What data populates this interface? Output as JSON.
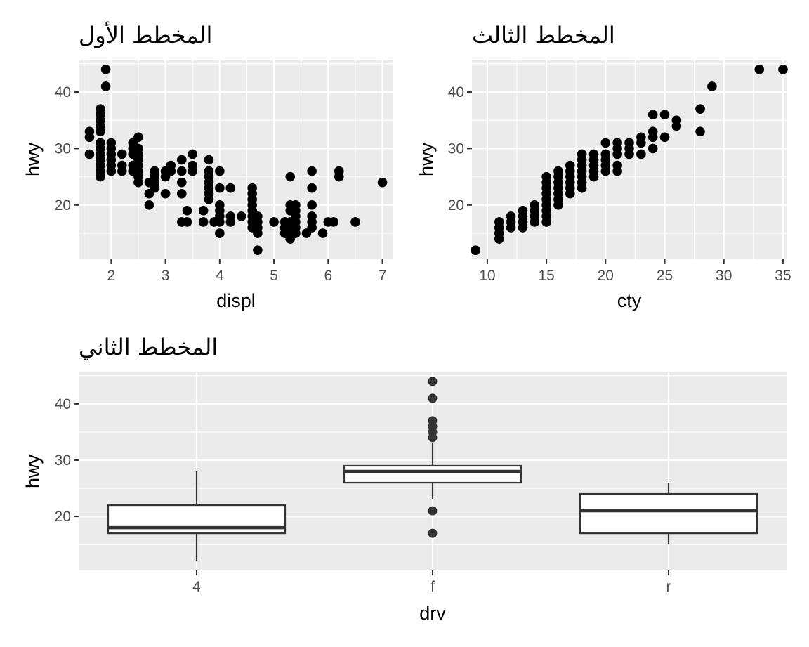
{
  "chart_data": [
    {
      "id": "p1",
      "type": "scatter",
      "title": "المخطط الأول",
      "xlabel": "displ",
      "ylabel": "hwy",
      "xlim": [
        1.4,
        7.2
      ],
      "ylim": [
        10.4,
        45.6
      ],
      "xticks": [
        2,
        3,
        4,
        5,
        6,
        7
      ],
      "yticks": [
        20,
        30,
        40
      ],
      "grid": true,
      "points": [
        [
          1.6,
          33
        ],
        [
          1.6,
          32
        ],
        [
          1.6,
          29
        ],
        [
          1.8,
          25
        ],
        [
          1.8,
          26
        ],
        [
          1.8,
          27
        ],
        [
          1.8,
          28
        ],
        [
          1.8,
          29
        ],
        [
          1.8,
          30
        ],
        [
          1.8,
          31
        ],
        [
          1.8,
          33
        ],
        [
          1.8,
          34
        ],
        [
          1.8,
          35
        ],
        [
          1.8,
          36
        ],
        [
          1.8,
          37
        ],
        [
          1.9,
          41
        ],
        [
          1.9,
          44
        ],
        [
          2.0,
          26
        ],
        [
          2.0,
          27
        ],
        [
          2.0,
          28
        ],
        [
          2.0,
          29
        ],
        [
          2.0,
          30
        ],
        [
          2.0,
          31
        ],
        [
          2.2,
          26
        ],
        [
          2.2,
          27
        ],
        [
          2.2,
          29
        ],
        [
          2.4,
          26
        ],
        [
          2.4,
          27
        ],
        [
          2.4,
          29
        ],
        [
          2.4,
          30
        ],
        [
          2.4,
          31
        ],
        [
          2.5,
          24
        ],
        [
          2.5,
          25
        ],
        [
          2.5,
          26
        ],
        [
          2.5,
          27
        ],
        [
          2.5,
          28
        ],
        [
          2.5,
          29
        ],
        [
          2.5,
          30
        ],
        [
          2.5,
          32
        ],
        [
          2.7,
          20
        ],
        [
          2.7,
          22
        ],
        [
          2.7,
          24
        ],
        [
          2.8,
          23
        ],
        [
          2.8,
          24
        ],
        [
          2.8,
          25
        ],
        [
          2.8,
          26
        ],
        [
          3.0,
          22
        ],
        [
          3.0,
          25
        ],
        [
          3.0,
          26
        ],
        [
          3.1,
          26
        ],
        [
          3.1,
          27
        ],
        [
          3.3,
          17
        ],
        [
          3.3,
          22
        ],
        [
          3.3,
          24
        ],
        [
          3.3,
          26
        ],
        [
          3.3,
          28
        ],
        [
          3.4,
          17
        ],
        [
          3.4,
          19
        ],
        [
          3.5,
          26
        ],
        [
          3.5,
          27
        ],
        [
          3.5,
          29
        ],
        [
          3.7,
          17
        ],
        [
          3.7,
          19
        ],
        [
          3.8,
          21
        ],
        [
          3.8,
          22
        ],
        [
          3.8,
          23
        ],
        [
          3.8,
          24
        ],
        [
          3.8,
          25
        ],
        [
          3.8,
          26
        ],
        [
          3.8,
          28
        ],
        [
          3.9,
          17
        ],
        [
          4.0,
          15
        ],
        [
          4.0,
          17
        ],
        [
          4.0,
          18
        ],
        [
          4.0,
          19
        ],
        [
          4.0,
          20
        ],
        [
          4.0,
          23
        ],
        [
          4.0,
          26
        ],
        [
          4.2,
          17
        ],
        [
          4.2,
          18
        ],
        [
          4.2,
          23
        ],
        [
          4.4,
          18
        ],
        [
          4.6,
          16
        ],
        [
          4.6,
          17
        ],
        [
          4.6,
          18
        ],
        [
          4.6,
          19
        ],
        [
          4.6,
          20
        ],
        [
          4.6,
          21
        ],
        [
          4.6,
          22
        ],
        [
          4.6,
          23
        ],
        [
          4.7,
          12
        ],
        [
          4.7,
          15
        ],
        [
          4.7,
          16
        ],
        [
          4.7,
          17
        ],
        [
          4.7,
          18
        ],
        [
          5.0,
          17
        ],
        [
          5.2,
          15
        ],
        [
          5.2,
          16
        ],
        [
          5.2,
          17
        ],
        [
          5.3,
          14
        ],
        [
          5.3,
          15
        ],
        [
          5.3,
          16
        ],
        [
          5.3,
          17
        ],
        [
          5.3,
          19
        ],
        [
          5.3,
          20
        ],
        [
          5.3,
          25
        ],
        [
          5.4,
          15
        ],
        [
          5.4,
          16
        ],
        [
          5.4,
          17
        ],
        [
          5.4,
          18
        ],
        [
          5.4,
          19
        ],
        [
          5.4,
          20
        ],
        [
          5.6,
          15
        ],
        [
          5.7,
          16
        ],
        [
          5.7,
          17
        ],
        [
          5.7,
          18
        ],
        [
          5.7,
          20
        ],
        [
          5.7,
          23
        ],
        [
          5.7,
          26
        ],
        [
          5.9,
          15
        ],
        [
          6.0,
          17
        ],
        [
          6.1,
          17
        ],
        [
          6.2,
          25
        ],
        [
          6.2,
          26
        ],
        [
          6.5,
          17
        ],
        [
          7.0,
          24
        ]
      ]
    },
    {
      "id": "p3",
      "type": "scatter",
      "title": "المخطط الثالث",
      "xlabel": "cty",
      "ylabel": "hwy",
      "xlim": [
        8.7,
        35.3
      ],
      "ylim": [
        10.4,
        45.6
      ],
      "xticks": [
        10,
        15,
        20,
        25,
        30,
        35
      ],
      "yticks": [
        20,
        30,
        40
      ],
      "grid": true,
      "points": [
        [
          9,
          12
        ],
        [
          11,
          14
        ],
        [
          11,
          15
        ],
        [
          11,
          16
        ],
        [
          11,
          17
        ],
        [
          12,
          16
        ],
        [
          12,
          17
        ],
        [
          12,
          18
        ],
        [
          13,
          16
        ],
        [
          13,
          17
        ],
        [
          13,
          18
        ],
        [
          13,
          19
        ],
        [
          14,
          17
        ],
        [
          14,
          18
        ],
        [
          14,
          19
        ],
        [
          14,
          20
        ],
        [
          15,
          17
        ],
        [
          15,
          18
        ],
        [
          15,
          19
        ],
        [
          15,
          20
        ],
        [
          15,
          21
        ],
        [
          15,
          22
        ],
        [
          15,
          23
        ],
        [
          15,
          24
        ],
        [
          15,
          25
        ],
        [
          16,
          20
        ],
        [
          16,
          21
        ],
        [
          16,
          22
        ],
        [
          16,
          23
        ],
        [
          16,
          24
        ],
        [
          16,
          25
        ],
        [
          16,
          26
        ],
        [
          17,
          22
        ],
        [
          17,
          23
        ],
        [
          17,
          24
        ],
        [
          17,
          25
        ],
        [
          17,
          26
        ],
        [
          17,
          27
        ],
        [
          18,
          23
        ],
        [
          18,
          24
        ],
        [
          18,
          25
        ],
        [
          18,
          26
        ],
        [
          18,
          27
        ],
        [
          18,
          28
        ],
        [
          18,
          29
        ],
        [
          19,
          25
        ],
        [
          19,
          26
        ],
        [
          19,
          27
        ],
        [
          19,
          28
        ],
        [
          19,
          29
        ],
        [
          20,
          26
        ],
        [
          20,
          27
        ],
        [
          20,
          28
        ],
        [
          20,
          29
        ],
        [
          20,
          31
        ],
        [
          21,
          26
        ],
        [
          21,
          27
        ],
        [
          21,
          29
        ],
        [
          21,
          30
        ],
        [
          21,
          31
        ],
        [
          22,
          29
        ],
        [
          22,
          30
        ],
        [
          22,
          31
        ],
        [
          23,
          29
        ],
        [
          23,
          31
        ],
        [
          23,
          32
        ],
        [
          24,
          30
        ],
        [
          24,
          32
        ],
        [
          24,
          33
        ],
        [
          24,
          36
        ],
        [
          25,
          32
        ],
        [
          25,
          36
        ],
        [
          26,
          34
        ],
        [
          26,
          35
        ],
        [
          28,
          33
        ],
        [
          28,
          37
        ],
        [
          29,
          41
        ],
        [
          33,
          44
        ],
        [
          35,
          44
        ]
      ]
    },
    {
      "id": "p2",
      "type": "box",
      "title": "المخطط الثاني",
      "xlabel": "drv",
      "ylabel": "hwy",
      "ylim": [
        10.4,
        45.6
      ],
      "yticks": [
        20,
        30,
        40
      ],
      "grid": true,
      "categories": [
        "4",
        "f",
        "r"
      ],
      "boxes": [
        {
          "category": "4",
          "min": 12,
          "q1": 17,
          "median": 18,
          "q3": 22,
          "max": 28,
          "outliers": []
        },
        {
          "category": "f",
          "min": 23,
          "q1": 26,
          "median": 28,
          "q3": 29,
          "max": 33,
          "outliers": [
            17,
            21,
            34,
            35,
            36,
            37,
            41,
            44
          ]
        },
        {
          "category": "r",
          "min": 15,
          "q1": 17,
          "median": 21,
          "q3": 24,
          "max": 26,
          "outliers": []
        }
      ]
    }
  ]
}
